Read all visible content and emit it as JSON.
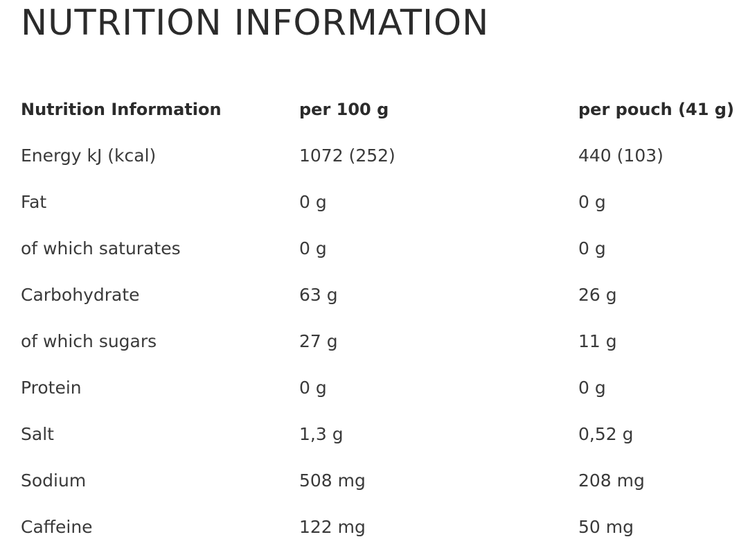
{
  "title": "NUTRITION INFORMATION",
  "table": {
    "headers": [
      "Nutrition Information",
      "per 100 g",
      "per pouch (41 g)"
    ],
    "rows": [
      [
        "Energy kJ (kcal)",
        "1072 (252)",
        "440 (103)"
      ],
      [
        "Fat",
        "0 g",
        "0 g"
      ],
      [
        "of which saturates",
        "0 g",
        "0 g"
      ],
      [
        "Carbohydrate",
        "63 g",
        "26 g"
      ],
      [
        "of which sugars",
        "27 g",
        "11 g"
      ],
      [
        "Protein",
        "0 g",
        "0 g"
      ],
      [
        "Salt",
        "1,3 g",
        "0,52 g"
      ],
      [
        "Sodium",
        "508 mg",
        "208 mg"
      ],
      [
        "Caffeine",
        "122 mg",
        "50 mg"
      ]
    ]
  }
}
